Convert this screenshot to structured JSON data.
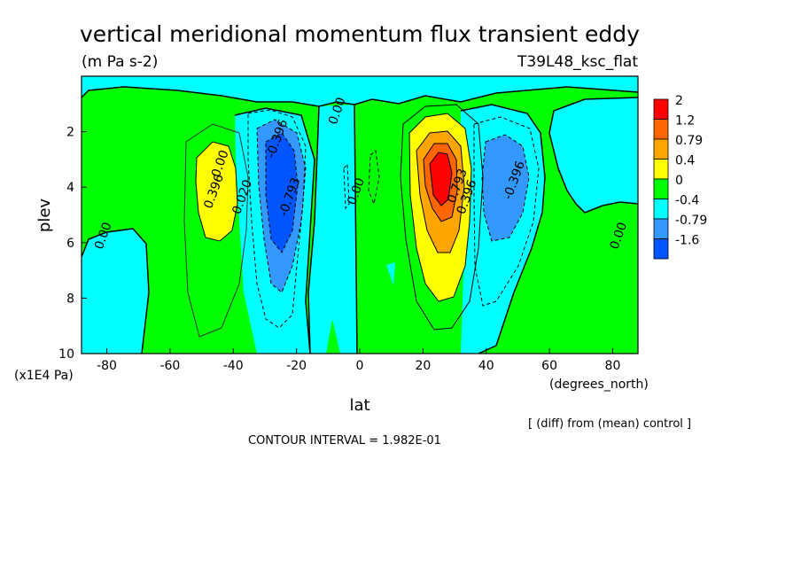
{
  "chart_data": {
    "type": "heatmap",
    "title": "vertical meridional momentum flux transient eddy",
    "units": "(m Pa s-2)",
    "experiment": "T39L48_ksc_flat",
    "xlabel": "lat",
    "xunits": "(degrees_north)",
    "ylabel": "plev",
    "yunits": "(x1E4 Pa)",
    "xlim": [
      -88,
      88
    ],
    "ylim": [
      10,
      0
    ],
    "xticks": [
      "-80",
      "-60",
      "-40",
      "-20",
      "0",
      "20",
      "40",
      "60",
      "80"
    ],
    "yticks": [
      "2",
      "4",
      "6",
      "8",
      "10"
    ],
    "note": "[ (diff) from (mean) control ]",
    "contour_interval": "CONTOUR INTERVAL = 1.982E-01",
    "colorbar": {
      "levels": [
        "2",
        "1.2",
        "0.79",
        "0.4",
        "0",
        "-0.4",
        "-0.79",
        "-1.6"
      ],
      "colors": [
        "#ff0000",
        "#ff6600",
        "#ffa500",
        "#ffff00",
        "#00ff00",
        "#00ffff",
        "#3399ff",
        "#0055ff"
      ]
    },
    "contour_labels": [
      {
        "text": "0.00",
        "lat": -80,
        "plev": 5.8
      },
      {
        "text": "0.00",
        "lat": -43,
        "plev": 3.2
      },
      {
        "text": "0.396",
        "lat": -45,
        "plev": 4.2
      },
      {
        "text": "0.020",
        "lat": -36,
        "plev": 4.4
      },
      {
        "text": "-0.396",
        "lat": -25,
        "plev": 2.3
      },
      {
        "text": "-0.793",
        "lat": -21,
        "plev": 4.4
      },
      {
        "text": "0.00",
        "lat": 0,
        "plev": 4.2
      },
      {
        "text": "0.793",
        "lat": 32,
        "plev": 4.0
      },
      {
        "text": "0.396",
        "lat": 35,
        "plev": 4.4
      },
      {
        "text": "-0.396",
        "lat": 50,
        "plev": 3.8
      },
      {
        "text": "0.00",
        "lat": 83,
        "plev": 5.8
      },
      {
        "text": "0.00",
        "lat": -6,
        "plev": 1.3
      }
    ]
  }
}
